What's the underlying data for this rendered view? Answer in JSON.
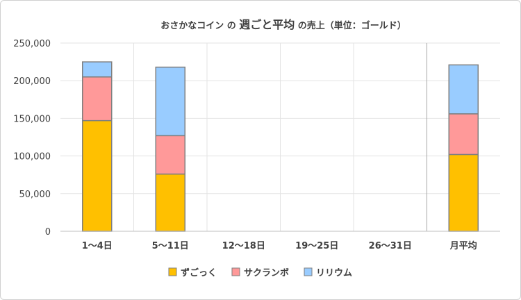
{
  "chart_data": {
    "type": "bar",
    "stacked": true,
    "title_prefix": "おさかなコイン の ",
    "title_emphasis": "週ごと平均",
    "title_suffix": " の売上（単位：ゴールド）",
    "categories": [
      "1～4日",
      "5～11日",
      "12～18日",
      "19～25日",
      "26～31日",
      "月平均"
    ],
    "series": [
      {
        "name": "ずごっく",
        "color": "#ffc000",
        "values": [
          147000,
          76000,
          null,
          null,
          null,
          102000
        ]
      },
      {
        "name": "サクランボ",
        "color": "#ff9999",
        "values": [
          58000,
          51000,
          null,
          null,
          null,
          54000
        ]
      },
      {
        "name": "リリウム",
        "color": "#99ccff",
        "values": [
          20000,
          91000,
          null,
          null,
          null,
          65000
        ]
      }
    ],
    "ylim": [
      0,
      250000
    ],
    "yticks": [
      0,
      50000,
      100000,
      150000,
      200000,
      250000
    ],
    "ytick_labels": [
      "0",
      "50,000",
      "100,000",
      "150,000",
      "200,000",
      "250,000"
    ],
    "grid": true,
    "legend_position": "bottom",
    "bar_outline_color": "#7f7f7f"
  }
}
